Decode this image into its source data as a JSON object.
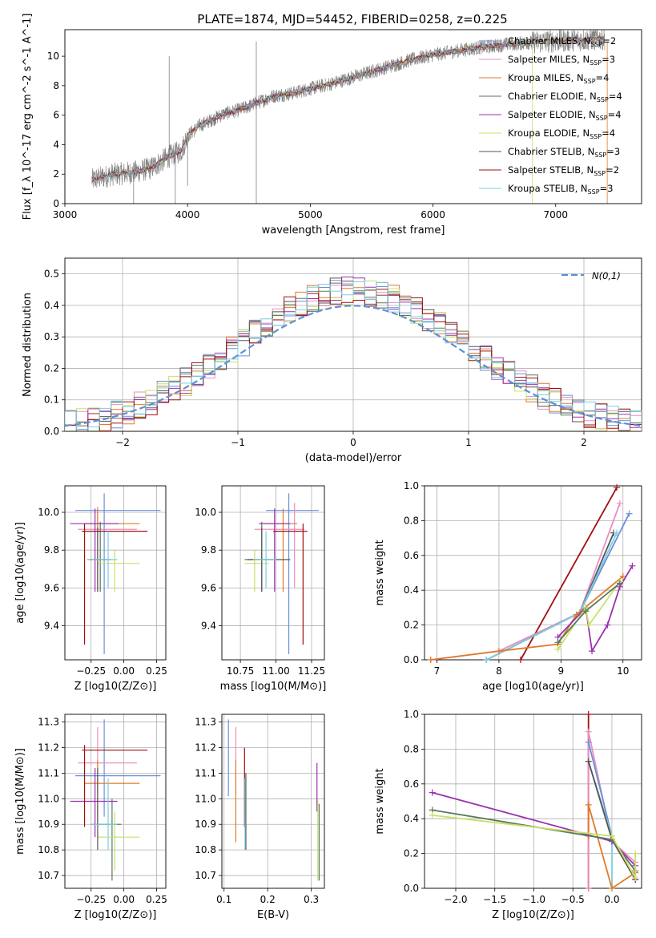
{
  "title": "PLATE=1874, MJD=54452, FIBERID=0258, z=0.225",
  "colors": {
    "chabrier_miles": "#6a8fd8",
    "salpeter_miles": "#e88fbf",
    "kroupa_miles": "#e07a2a",
    "chabrier_elodie": "#5a7a5a",
    "salpeter_elodie": "#9b30b0",
    "kroupa_elodie": "#c8e06a",
    "chabrier_stelib": "#555555",
    "salpeter_stelib": "#a01010",
    "kroupa_stelib": "#7ccde0",
    "data": "#808080",
    "gaussian": "#5b8fd8"
  },
  "chart_data": [
    {
      "id": "spectrum",
      "type": "line",
      "xlabel": "wavelength [Angstrom, rest frame]",
      "ylabel": "Flux [f_λ 10^-17 erg cm^-2 s^-1 A^-1]",
      "xlim": [
        3000,
        7700
      ],
      "ylim": [
        0,
        11.8
      ],
      "xticks": [
        "3000",
        "4000",
        "5000",
        "6000",
        "7000"
      ],
      "yticks": [
        "0",
        "2",
        "4",
        "6",
        "8",
        "10"
      ],
      "grid": false,
      "legend_position": "top-right",
      "legend": [
        {
          "label": "Chabrier MILES, N",
          "sub": "SSP",
          "tail": "=2"
        },
        {
          "label": "Salpeter MILES, N",
          "sub": "SSP",
          "tail": "=3"
        },
        {
          "label": "Kroupa MILES, N",
          "sub": "SSP",
          "tail": "=4"
        },
        {
          "label": "Chabrier ELODIE, N",
          "sub": "SSP",
          "tail": "=4"
        },
        {
          "label": "Salpeter ELODIE, N",
          "sub": "SSP",
          "tail": "=4"
        },
        {
          "label": "Kroupa ELODIE, N",
          "sub": "SSP",
          "tail": "=4"
        },
        {
          "label": "Chabrier STELIB, N",
          "sub": "SSP",
          "tail": "=3"
        },
        {
          "label": "Salpeter STELIB, N",
          "sub": "SSP",
          "tail": "=2"
        },
        {
          "label": "Kroupa STELIB, N",
          "sub": "SSP",
          "tail": "=3"
        }
      ],
      "continuum_x": [
        3220,
        3400,
        3550,
        3700,
        3850,
        3950,
        4000,
        4100,
        4200,
        4300,
        4400,
        4500,
        4700,
        4860,
        5000,
        5200,
        5400,
        5600,
        5800,
        6000,
        6300,
        6600,
        6900,
        7200,
        7400
      ],
      "continuum_y": [
        1.6,
        2.0,
        2.1,
        2.4,
        3.2,
        3.6,
        4.6,
        5.3,
        5.7,
        6.1,
        6.3,
        6.6,
        7.3,
        7.5,
        7.8,
        8.2,
        8.7,
        9.2,
        9.7,
        10.1,
        10.5,
        10.8,
        11.0,
        11.1,
        11.2
      ]
    },
    {
      "id": "residuals",
      "type": "histogram",
      "xlabel": "(data-model)/error",
      "ylabel": "Normed distribution",
      "xlim": [
        -2.5,
        2.5
      ],
      "ylim": [
        0,
        0.55
      ],
      "xticks": [
        "−2",
        "−1",
        "0",
        "1",
        "2"
      ],
      "yticks": [
        "0.0",
        "0.1",
        "0.2",
        "0.3",
        "0.4",
        "0.5"
      ],
      "grid": true,
      "legend_position": "top-right",
      "gaussian_label": "N(0,1)",
      "bin_width": 0.1,
      "bin_start": -2.6
    },
    {
      "id": "age_vs_Z",
      "type": "errorbar",
      "xlabel": "Z [log10(Z/Z⊙)]",
      "ylabel": "age [log10(age/yr)]",
      "xlim": [
        -0.45,
        0.32
      ],
      "ylim": [
        9.22,
        10.14
      ],
      "xticks": [
        "−0.25",
        "0.00",
        "0.25"
      ],
      "xtick_values": [
        -0.25,
        0,
        0.25
      ],
      "yticks": [
        "9.4",
        "9.6",
        "9.8",
        "10.0"
      ],
      "ytick_values": [
        9.4,
        9.6,
        9.8,
        10.0
      ],
      "points": [
        {
          "c": "chabrier_miles",
          "x": -0.15,
          "xe": [
            -0.37,
            0.28
          ],
          "y": 10.01,
          "ye": [
            9.25,
            10.1
          ]
        },
        {
          "c": "salpeter_miles",
          "x": -0.2,
          "xe": [
            -0.35,
            0.1
          ],
          "y": 9.91,
          "ye": [
            9.6,
            10.03
          ]
        },
        {
          "c": "kroupa_miles",
          "x": -0.2,
          "xe": [
            -0.3,
            0.12
          ],
          "y": 9.94,
          "ye": [
            9.58,
            10.02
          ]
        },
        {
          "c": "chabrier_elodie",
          "x": -0.18,
          "xe": [
            -0.26,
            -0.1
          ],
          "y": 9.75,
          "ye": [
            9.58,
            9.95
          ]
        },
        {
          "c": "salpeter_elodie",
          "x": -0.22,
          "xe": [
            -0.41,
            -0.04
          ],
          "y": 9.94,
          "ye": [
            9.58,
            10.02
          ]
        },
        {
          "c": "kroupa_elodie",
          "x": -0.07,
          "xe": [
            -0.2,
            0.12
          ],
          "y": 9.73,
          "ye": [
            9.58,
            9.8
          ]
        },
        {
          "c": "chabrier_stelib",
          "x": -0.2,
          "xe": [
            -0.28,
            -0.1
          ],
          "y": 9.75,
          "ye": [
            9.58,
            9.92
          ]
        },
        {
          "c": "salpeter_stelib",
          "x": -0.3,
          "xe": [
            -0.32,
            0.18
          ],
          "y": 9.9,
          "ye": [
            9.3,
            9.94
          ]
        },
        {
          "c": "kroupa_stelib",
          "x": -0.12,
          "xe": [
            -0.28,
            -0.05
          ],
          "y": 9.75,
          "ye": [
            9.6,
            9.9
          ]
        }
      ]
    },
    {
      "id": "age_vs_mass",
      "type": "errorbar",
      "xlabel": "mass [log10(M/M⊙)]",
      "ylabel": "",
      "xlim": [
        10.62,
        11.34
      ],
      "ylim": [
        9.22,
        10.14
      ],
      "xticks": [
        "10.75",
        "11.00",
        "11.25"
      ],
      "xtick_values": [
        10.75,
        11.0,
        11.25
      ],
      "yticks": [
        "9.4",
        "9.6",
        "9.8",
        "10.0"
      ],
      "ytick_values": [
        9.4,
        9.6,
        9.8,
        10.0
      ],
      "points": [
        {
          "c": "chabrier_miles",
          "x": 11.09,
          "xe": [
            10.93,
            11.3
          ],
          "y": 10.01,
          "ye": [
            9.25,
            10.1
          ]
        },
        {
          "c": "salpeter_miles",
          "x": 11.13,
          "xe": [
            10.85,
            11.2
          ],
          "y": 9.91,
          "ye": [
            9.6,
            10.05
          ]
        },
        {
          "c": "kroupa_miles",
          "x": 11.05,
          "xe": [
            10.9,
            11.15
          ],
          "y": 9.94,
          "ye": [
            9.58,
            10.02
          ]
        },
        {
          "c": "chabrier_elodie",
          "x": 10.9,
          "xe": [
            10.78,
            10.98
          ],
          "y": 9.75,
          "ye": [
            9.58,
            9.95
          ]
        },
        {
          "c": "salpeter_elodie",
          "x": 10.99,
          "xe": [
            10.88,
            11.1
          ],
          "y": 9.94,
          "ye": [
            9.58,
            10.02
          ]
        },
        {
          "c": "kroupa_elodie",
          "x": 10.85,
          "xe": [
            10.78,
            10.95
          ],
          "y": 9.73,
          "ye": [
            9.58,
            9.8
          ]
        },
        {
          "c": "chabrier_stelib",
          "x": 10.9,
          "xe": [
            10.8,
            11.1
          ],
          "y": 9.75,
          "ye": [
            9.58,
            9.92
          ]
        },
        {
          "c": "salpeter_stelib",
          "x": 11.19,
          "xe": [
            10.98,
            11.22
          ],
          "y": 9.9,
          "ye": [
            9.3,
            9.94
          ]
        },
        {
          "c": "kroupa_stelib",
          "x": 10.93,
          "xe": [
            10.84,
            11.0
          ],
          "y": 9.75,
          "ye": [
            9.6,
            9.9
          ]
        }
      ]
    },
    {
      "id": "weight_vs_age",
      "type": "line",
      "xlabel": "age [log10(age/yr)]",
      "ylabel": "mass weight",
      "xlim": [
        6.8,
        10.3
      ],
      "ylim": [
        0,
        1
      ],
      "xticks": [
        "7",
        "8",
        "9",
        "10"
      ],
      "xtick_values": [
        7,
        8,
        9,
        10
      ],
      "yticks": [
        "0.0",
        "0.2",
        "0.4",
        "0.6",
        "0.8",
        "1.0"
      ],
      "ytick_values": [
        0,
        0.2,
        0.4,
        0.6,
        0.8,
        1.0
      ],
      "grid": true,
      "series": [
        {
          "c": "salpeter_stelib",
          "x": [
            8.35,
            9.9
          ],
          "y": [
            0.0,
            0.99
          ]
        },
        {
          "c": "salpeter_miles",
          "x": [
            6.9,
            8.0,
            9.3,
            9.95
          ],
          "y": [
            0.0,
            0.05,
            0.27,
            0.9
          ]
        },
        {
          "c": "chabrier_miles",
          "x": [
            7.8,
            9.3,
            10.1
          ],
          "y": [
            0.0,
            0.27,
            0.84
          ]
        },
        {
          "c": "chabrier_stelib",
          "x": [
            7.8,
            9.3,
            9.85
          ],
          "y": [
            0.0,
            0.27,
            0.73
          ]
        },
        {
          "c": "kroupa_stelib",
          "x": [
            7.8,
            9.3,
            9.9
          ],
          "y": [
            0.0,
            0.27,
            0.73
          ]
        },
        {
          "c": "kroupa_miles",
          "x": [
            6.9,
            8.0,
            8.95,
            9.25,
            10.0
          ],
          "y": [
            0.0,
            0.05,
            0.09,
            0.26,
            0.48
          ]
        },
        {
          "c": "salpeter_elodie",
          "x": [
            8.95,
            9.4,
            9.5,
            9.75,
            9.95,
            10.15
          ],
          "y": [
            0.13,
            0.3,
            0.05,
            0.2,
            0.42,
            0.54
          ]
        },
        {
          "c": "kroupa_elodie",
          "x": [
            8.95,
            9.4,
            9.45,
            9.95
          ],
          "y": [
            0.06,
            0.3,
            0.2,
            0.45
          ]
        },
        {
          "c": "chabrier_elodie",
          "x": [
            8.95,
            9.4,
            9.95
          ],
          "y": [
            0.1,
            0.28,
            0.44
          ]
        }
      ]
    },
    {
      "id": "mass_vs_Z",
      "type": "errorbar",
      "xlabel": "Z [log10(Z/Z⊙)]",
      "ylabel": "mass [log10(M/M⊙)]",
      "xlim": [
        -0.45,
        0.32
      ],
      "ylim": [
        10.65,
        11.33
      ],
      "xticks": [
        "−0.25",
        "0.00",
        "0.25"
      ],
      "xtick_values": [
        -0.25,
        0,
        0.25
      ],
      "yticks": [
        "10.7",
        "10.8",
        "10.9",
        "11.0",
        "11.1",
        "11.2",
        "11.3"
      ],
      "ytick_values": [
        10.7,
        10.8,
        10.9,
        11.0,
        11.1,
        11.2,
        11.3
      ],
      "points": [
        {
          "c": "chabrier_miles",
          "x": -0.15,
          "xe": [
            -0.37,
            0.28
          ],
          "y": 11.09,
          "ye": [
            10.93,
            11.31
          ]
        },
        {
          "c": "salpeter_miles",
          "x": -0.2,
          "xe": [
            -0.35,
            0.1
          ],
          "y": 11.14,
          "ye": [
            10.9,
            11.28
          ]
        },
        {
          "c": "kroupa_miles",
          "x": -0.2,
          "xe": [
            -0.3,
            0.12
          ],
          "y": 11.06,
          "ye": [
            10.9,
            11.15
          ]
        },
        {
          "c": "chabrier_elodie",
          "x": -0.09,
          "xe": [
            -0.2,
            -0.02
          ],
          "y": 10.9,
          "ye": [
            10.68,
            11.0
          ]
        },
        {
          "c": "salpeter_elodie",
          "x": -0.22,
          "xe": [
            -0.41,
            -0.05
          ],
          "y": 10.99,
          "ye": [
            10.85,
            11.12
          ]
        },
        {
          "c": "kroupa_elodie",
          "x": -0.07,
          "xe": [
            -0.2,
            0.12
          ],
          "y": 10.85,
          "ye": [
            10.72,
            10.95
          ]
        },
        {
          "c": "chabrier_stelib",
          "x": -0.2,
          "xe": [
            -0.25,
            -0.1
          ],
          "y": 10.9,
          "ye": [
            10.8,
            11.12
          ]
        },
        {
          "c": "salpeter_stelib",
          "x": -0.3,
          "xe": [
            -0.32,
            0.18
          ],
          "y": 11.19,
          "ye": [
            10.89,
            11.21
          ]
        },
        {
          "c": "kroupa_stelib",
          "x": -0.12,
          "xe": [
            -0.25,
            -0.05
          ],
          "y": 10.9,
          "ye": [
            10.8,
            11.08
          ]
        }
      ]
    },
    {
      "id": "mass_vs_ebv",
      "type": "errorbar",
      "xlabel": "E(B-V)",
      "ylabel": "",
      "xlim": [
        0.095,
        0.33
      ],
      "ylim": [
        10.65,
        11.33
      ],
      "xticks": [
        "0.1",
        "0.2",
        "0.3"
      ],
      "xtick_values": [
        0.1,
        0.2,
        0.3
      ],
      "yticks": [
        "10.7",
        "10.8",
        "10.9",
        "11.0",
        "11.1",
        "11.2",
        "11.3"
      ],
      "ytick_values": [
        10.7,
        10.8,
        10.9,
        11.0,
        11.1,
        11.2,
        11.3
      ],
      "points": [
        {
          "c": "chabrier_miles",
          "x": 0.11,
          "y": 11.09,
          "ye": [
            11.01,
            11.31
          ]
        },
        {
          "c": "salpeter_miles",
          "x": 0.127,
          "y": 11.14,
          "ye": [
            11.02,
            11.28
          ]
        },
        {
          "c": "kroupa_miles",
          "x": 0.127,
          "y": 11.06,
          "ye": [
            10.83,
            11.15
          ]
        },
        {
          "c": "chabrier_elodie",
          "x": 0.318,
          "y": 10.9,
          "ye": [
            10.68,
            10.98
          ]
        },
        {
          "c": "salpeter_elodie",
          "x": 0.313,
          "y": 10.99,
          "ye": [
            10.95,
            11.14
          ]
        },
        {
          "c": "kroupa_elodie",
          "x": 0.315,
          "y": 10.85,
          "ye": [
            10.68,
            11.0
          ]
        },
        {
          "c": "chabrier_stelib",
          "x": 0.15,
          "y": 10.9,
          "ye": [
            10.8,
            11.1
          ]
        },
        {
          "c": "salpeter_stelib",
          "x": 0.147,
          "y": 11.19,
          "ye": [
            10.89,
            11.2
          ]
        },
        {
          "c": "kroupa_stelib",
          "x": 0.148,
          "y": 10.9,
          "ye": [
            10.8,
            11.08
          ]
        }
      ]
    },
    {
      "id": "weight_vs_Z",
      "type": "line",
      "xlabel": "Z [log10(Z/Z⊙)]",
      "ylabel": "mass weight",
      "xlim": [
        -2.4,
        0.38
      ],
      "ylim": [
        0,
        1
      ],
      "xticks": [
        "−2.0",
        "−1.5",
        "−1.0",
        "−0.5",
        "0.0"
      ],
      "xtick_values": [
        -2.0,
        -1.5,
        -1.0,
        -0.5,
        0.0
      ],
      "yticks": [
        "0.0",
        "0.2",
        "0.4",
        "0.6",
        "0.8",
        "1.0"
      ],
      "ytick_values": [
        0,
        0.2,
        0.4,
        0.6,
        0.8,
        1.0
      ],
      "grid": true,
      "series": [
        {
          "c": "salpeter_stelib",
          "x": [
            -0.3,
            -0.3
          ],
          "y": [
            0.0,
            1.0
          ]
        },
        {
          "c": "salpeter_miles",
          "x": [
            -0.3,
            -0.3,
            0.0,
            0.3
          ],
          "y": [
            0.0,
            0.9,
            0.27,
            0.15
          ]
        },
        {
          "c": "chabrier_miles",
          "x": [
            -0.3,
            0.0,
            0.3
          ],
          "y": [
            0.84,
            0.3,
            0.05
          ]
        },
        {
          "c": "kroupa_stelib",
          "x": [
            -0.3,
            0.0,
            0.0
          ],
          "y": [
            0.73,
            0.3,
            0.0
          ]
        },
        {
          "c": "chabrier_stelib",
          "x": [
            -0.3,
            0.0,
            0.3
          ],
          "y": [
            0.73,
            0.28,
            0.05
          ]
        },
        {
          "c": "kroupa_miles",
          "x": [
            -0.3,
            -0.3,
            0.0,
            0.3
          ],
          "y": [
            0.3,
            0.48,
            0.0,
            0.09
          ]
        },
        {
          "c": "salpeter_elodie",
          "x": [
            -2.3,
            0.0,
            0.3,
            0.3
          ],
          "y": [
            0.55,
            0.27,
            0.13,
            0.05
          ]
        },
        {
          "c": "chabrier_elodie",
          "x": [
            -2.3,
            0.0,
            0.3
          ],
          "y": [
            0.45,
            0.28,
            0.1
          ]
        },
        {
          "c": "kroupa_elodie",
          "x": [
            -2.3,
            0.0,
            0.3,
            0.3
          ],
          "y": [
            0.42,
            0.3,
            0.06,
            0.2
          ]
        }
      ]
    }
  ]
}
